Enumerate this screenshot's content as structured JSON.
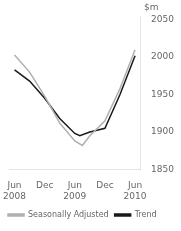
{
  "chart_data": {
    "type": "line",
    "ylabel": "$m",
    "xlim": [
      -1,
      25
    ],
    "xticks": [
      {
        "value": 0,
        "label": "Jun\n2008"
      },
      {
        "value": 6,
        "label": "Dec"
      },
      {
        "value": 12,
        "label": "Jun\n2009"
      },
      {
        "value": 18,
        "label": "Dec"
      },
      {
        "value": 24,
        "label": "Jun\n2010"
      }
    ],
    "ylim": [
      1850,
      2055
    ],
    "yticks": [
      1850,
      1900,
      1950,
      2000,
      2050
    ],
    "grid": false,
    "legend": "lower left",
    "series": [
      {
        "name": "Seasonally Adjusted",
        "color": "#b0b0b0",
        "x": [
          0,
          3,
          6,
          9,
          12,
          13.5,
          15,
          18,
          21,
          24
        ],
        "values": [
          2003,
          1980,
          1948,
          1912,
          1888,
          1882,
          1895,
          1915,
          1958,
          2010
        ]
      },
      {
        "name": "Trend",
        "color": "#1a1a1a",
        "x": [
          0,
          3,
          6,
          9,
          12,
          13,
          15,
          18,
          21,
          24
        ],
        "values": [
          1983,
          1968,
          1945,
          1918,
          1898,
          1895,
          1900,
          1905,
          1950,
          2002
        ]
      }
    ]
  }
}
